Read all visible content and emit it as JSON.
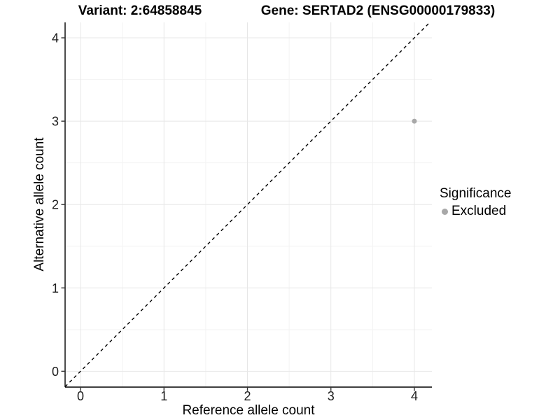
{
  "titles": {
    "left": "Variant: 2:64858845",
    "right": "Gene: SERTAD2 (ENSG00000179833)"
  },
  "chart_data": {
    "type": "scatter",
    "title": "Variant: 2:64858845 | Gene: SERTAD2 (ENSG00000179833)",
    "xlabel": "Reference allele count",
    "ylabel": "Alternative allele count",
    "xlim": [
      -0.185,
      4.21
    ],
    "ylim": [
      -0.19,
      4.185
    ],
    "xticks": [
      0,
      1,
      2,
      3,
      4
    ],
    "yticks": [
      0,
      1,
      2,
      3,
      4
    ],
    "minor_gridlines_x": [
      0.5,
      1.5,
      2.5,
      3.5
    ],
    "minor_gridlines_y": [
      0.5,
      1.5,
      2.5,
      3.5
    ],
    "grid": "major+minor",
    "legend_position": "right",
    "identity_line": {
      "slope": 1,
      "intercept": 0,
      "style": "dashed",
      "color": "#000000"
    },
    "series": [
      {
        "name": "Excluded",
        "color": "#a8a8a8",
        "points": [
          {
            "x": 4,
            "y": 3
          }
        ]
      }
    ],
    "legend": {
      "title": "Significance",
      "items": [
        {
          "label": "Excluded",
          "color": "#a8a8a8",
          "marker": "circle"
        }
      ]
    },
    "colors": {
      "background": "#ffffff",
      "major_grid": "#e7e7e7",
      "minor_grid": "#f3f3f3",
      "axis_line": "#000000",
      "tick_mark": "#333333",
      "tick_label": "#1a1a1a",
      "point": "#a8a8a8"
    }
  }
}
